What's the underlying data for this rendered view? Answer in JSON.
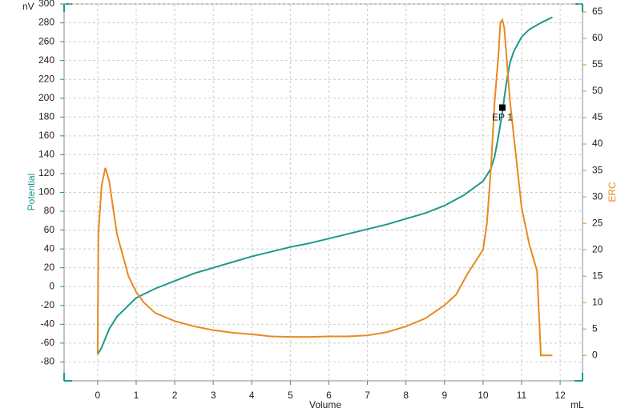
{
  "chart_data": {
    "type": "line",
    "x_label": "Volume",
    "x_unit": "mL",
    "y_label": "Potential",
    "y_unit": "nV",
    "y2_label": "ERC",
    "xlim": [
      -0.87,
      12.58
    ],
    "xticks": [
      0,
      1,
      2,
      3,
      4,
      5,
      6,
      7,
      8,
      9,
      10,
      11,
      12
    ],
    "ylim": [
      -100,
      300
    ],
    "yticks": [
      -80,
      -60,
      -40,
      -20,
      0,
      20,
      40,
      60,
      80,
      100,
      120,
      140,
      160,
      180,
      200,
      220,
      240,
      260,
      280,
      300
    ],
    "y2lim": [
      -4.8,
      66.5
    ],
    "y2ticks": [
      0,
      5,
      10,
      15,
      20,
      25,
      30,
      35,
      40,
      45,
      50,
      55,
      60,
      65
    ],
    "grid": true,
    "series": [
      {
        "name": "Potential",
        "color": "#1a9a8a",
        "x": [
          0,
          0.1,
          0.3,
          0.5,
          0.8,
          1,
          1.5,
          2,
          2.5,
          3,
          3.5,
          4,
          4.5,
          5,
          5.5,
          6,
          6.5,
          7,
          7.5,
          8,
          8.5,
          9,
          9.5,
          10,
          10.2,
          10.3,
          10.4,
          10.5,
          10.6,
          10.7,
          10.8,
          11,
          11.2,
          11.5,
          11.8
        ],
        "values": [
          -72,
          -65,
          -45,
          -32,
          -20,
          -12,
          -2,
          6,
          14,
          20,
          26,
          32,
          37,
          42,
          46,
          51,
          56,
          61,
          66,
          72,
          78,
          86,
          97,
          112,
          125,
          138,
          160,
          185,
          215,
          238,
          250,
          265,
          273,
          280,
          286
        ]
      },
      {
        "name": "ERC",
        "color": "#e8891f",
        "axis": "y2",
        "x": [
          0,
          0.02,
          0.1,
          0.2,
          0.3,
          0.5,
          0.8,
          1,
          1.2,
          1.5,
          2,
          2.5,
          3,
          3.5,
          4,
          4.5,
          5,
          5.5,
          6,
          6.5,
          7,
          7.5,
          8,
          8.5,
          9,
          9.3,
          9.6,
          10,
          10.1,
          10.2,
          10.3,
          10.4,
          10.45,
          10.5,
          10.55,
          10.7,
          11,
          11.2,
          11.4,
          11.5,
          11.8
        ],
        "values": [
          0.2,
          23,
          32,
          35.5,
          33,
          23,
          15,
          12,
          10,
          8,
          6.5,
          5.5,
          4.8,
          4.3,
          4,
          3.6,
          3.5,
          3.5,
          3.6,
          3.6,
          3.8,
          4.4,
          5.5,
          7,
          9.5,
          11.5,
          15.5,
          20,
          25,
          35,
          48,
          57,
          63,
          63.5,
          62,
          48,
          28,
          21,
          16,
          0,
          0
        ]
      }
    ],
    "annotation": {
      "label": "EP 1",
      "x": 10.5,
      "y": 190
    }
  }
}
